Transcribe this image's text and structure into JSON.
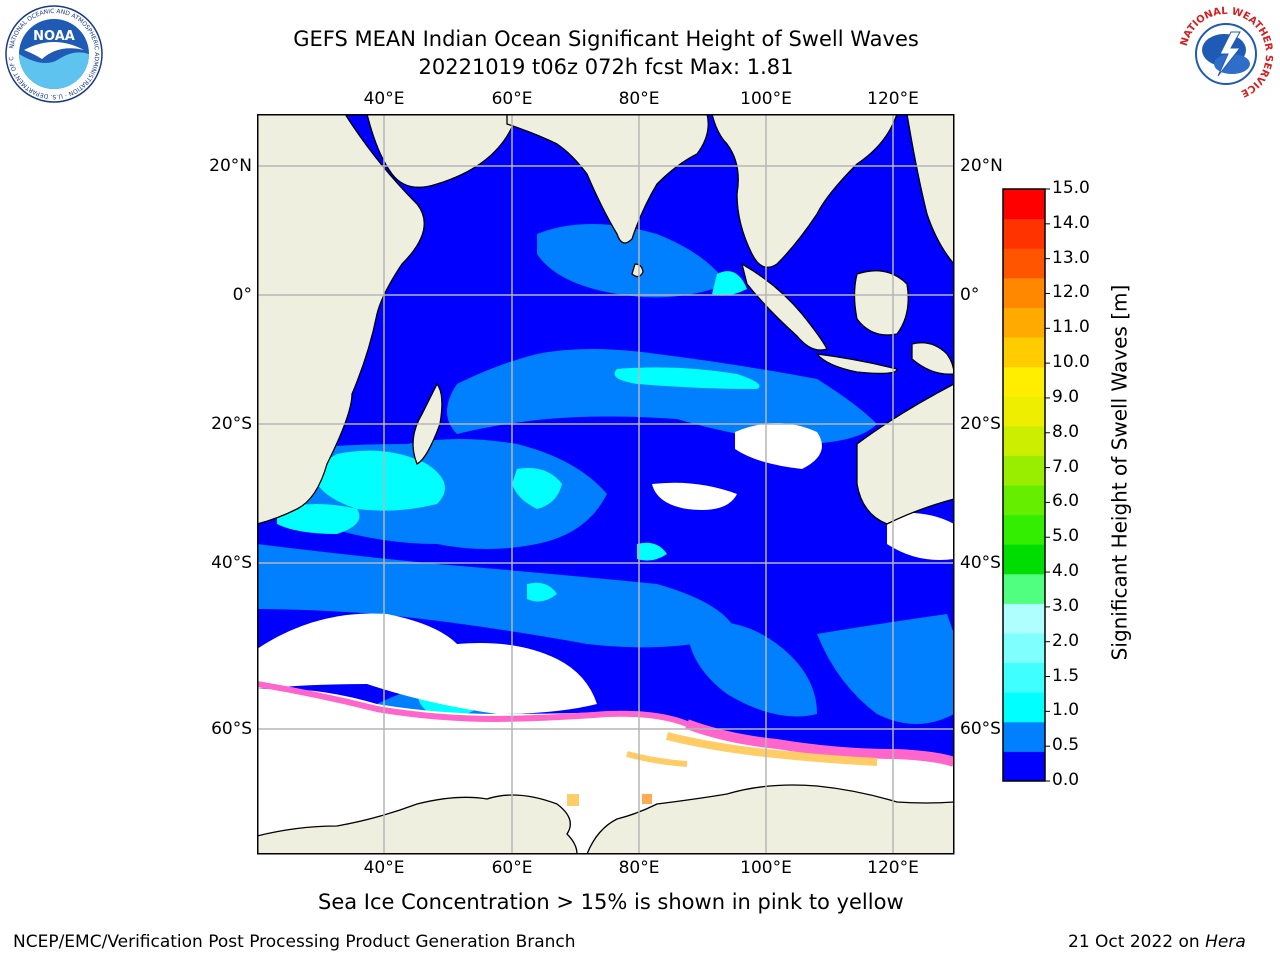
{
  "title": {
    "line1": "GEFS MEAN Indian Ocean Significant Height of Swell Waves",
    "line2": "20221019 t06z 072h fcst   Max: 1.81"
  },
  "map": {
    "lon_ticks": [
      "40°E",
      "60°E",
      "80°E",
      "100°E",
      "120°E"
    ],
    "lat_ticks": [
      "20°N",
      "0°",
      "20°S",
      "40°S",
      "60°S"
    ],
    "extent": {
      "lon": [
        20,
        129
      ],
      "lat": [
        -74,
        26
      ]
    },
    "land_color": "#efefdf",
    "missing_color": "#ffffff"
  },
  "colorbar": {
    "label": "Significant Height of Swell Waves [m]",
    "ticks": [
      "0.0",
      "0.5",
      "1.0",
      "1.5",
      "2.0",
      "3.0",
      "4.0",
      "5.0",
      "6.0",
      "7.0",
      "8.0",
      "9.0",
      "10.0",
      "11.0",
      "12.0",
      "13.0",
      "14.0",
      "15.0"
    ],
    "colors": [
      "#0000ff",
      "#0080ff",
      "#00ffff",
      "#40ffff",
      "#80ffff",
      "#b0ffff",
      "#50ff80",
      "#00dd00",
      "#33ee00",
      "#66ee00",
      "#99ee00",
      "#ccee00",
      "#eeee00",
      "#ffee00",
      "#ffcc00",
      "#ffaa00",
      "#ff8800",
      "#ff5500",
      "#ff3300",
      "#ff0000"
    ]
  },
  "caption": "Sea Ice Concentration > 15% is shown in pink to yellow",
  "footer": {
    "left": "NCEP/EMC/Verification Post Processing Product Generation Branch",
    "right_date": "21 Oct 2022 on ",
    "right_machine": "Hera"
  },
  "logos": {
    "noaa": "NOAA",
    "noaa_ring": "NATIONAL OCEANIC AND ATMOSPHERIC ADMINISTRATION · U.S. DEPARTMENT OF COMMERCE",
    "nws_ring": "NATIONAL WEATHER SERVICE"
  }
}
